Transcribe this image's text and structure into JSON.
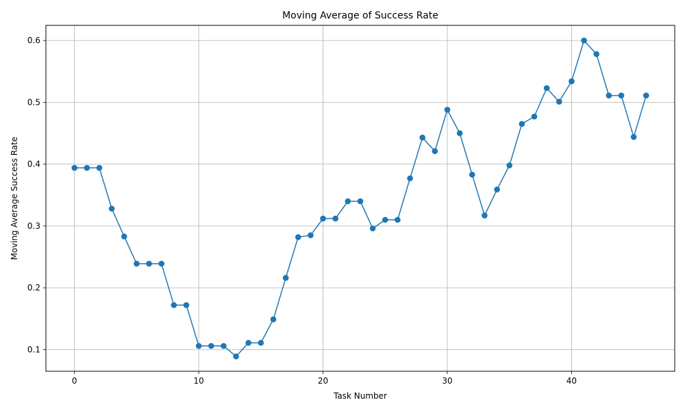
{
  "chart_data": {
    "type": "line",
    "title": "Moving Average of Success Rate",
    "xlabel": "Task Number",
    "ylabel": "Moving Average Success Rate",
    "xlim": [
      -2.3,
      48.3
    ],
    "ylim": [
      0.065,
      0.6245
    ],
    "xticks": [
      0,
      10,
      20,
      30,
      40
    ],
    "yticks": [
      0.1,
      0.2,
      0.3,
      0.4,
      0.5,
      0.6
    ],
    "grid": true,
    "marker": "circle",
    "color": "#1f77b4",
    "series": [
      {
        "x": [
          0,
          1,
          2,
          3,
          4,
          5,
          6,
          7,
          8,
          9,
          10,
          11,
          12,
          13,
          14,
          15,
          16,
          17,
          18,
          19,
          20,
          21,
          22,
          23,
          24,
          25,
          26,
          27,
          28,
          29,
          30,
          31,
          32,
          33,
          34,
          35,
          36,
          37,
          38,
          39,
          40,
          41,
          42,
          43,
          44,
          45,
          46
        ],
        "values": [
          0.394,
          0.394,
          0.394,
          0.328,
          0.283,
          0.239,
          0.239,
          0.239,
          0.172,
          0.172,
          0.106,
          0.106,
          0.106,
          0.089,
          0.111,
          0.111,
          0.149,
          0.216,
          0.282,
          0.285,
          0.312,
          0.312,
          0.34,
          0.34,
          0.296,
          0.31,
          0.31,
          0.377,
          0.443,
          0.421,
          0.488,
          0.45,
          0.383,
          0.317,
          0.359,
          0.398,
          0.465,
          0.477,
          0.523,
          0.501,
          0.534,
          0.6,
          0.578,
          0.511,
          0.511,
          0.444,
          0.511
        ]
      }
    ]
  }
}
